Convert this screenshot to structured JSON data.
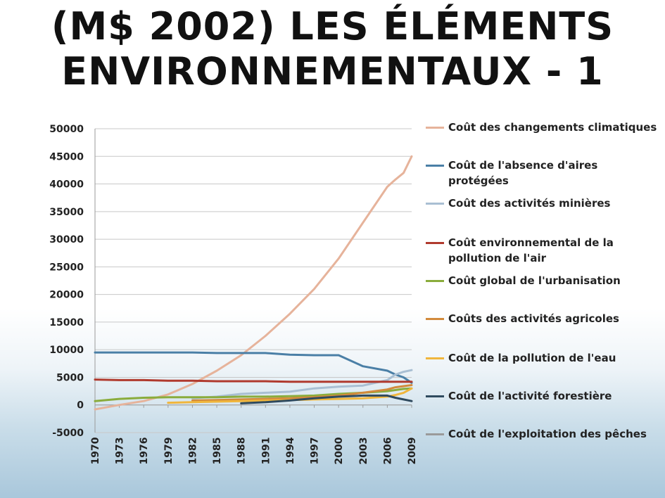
{
  "slide": {
    "title_line1": "(M$ 2002) LES ÉLÉMENTS",
    "title_line2": "ENVIRONNEMENTAUX - 1"
  },
  "chart_data": {
    "type": "line",
    "title": "",
    "xlabel": "",
    "ylabel": "",
    "ylim": [
      -5000,
      50000
    ],
    "yticks": [
      -5000,
      0,
      5000,
      10000,
      15000,
      20000,
      25000,
      30000,
      35000,
      40000,
      45000,
      50000
    ],
    "x": [
      1970,
      1973,
      1976,
      1979,
      1982,
      1985,
      1988,
      1991,
      1994,
      1997,
      2000,
      2003,
      2006,
      2007,
      2008,
      2009
    ],
    "xtick_labels": [
      "1970",
      "1973",
      "1976",
      "1979",
      "1982",
      "1985",
      "1988",
      "1991",
      "1994",
      "1997",
      "2000",
      "2003",
      "2006",
      "2009"
    ],
    "grid": "horizontal",
    "legend_position": "right",
    "series": [
      {
        "name": "Coût des changements climatiques",
        "color": "#e6b39b",
        "values": [
          -800,
          0,
          700,
          1900,
          3800,
          6200,
          9000,
          12500,
          16500,
          21000,
          26500,
          33000,
          39500,
          40800,
          42000,
          45000
        ]
      },
      {
        "name": "Coût de l'absence d'aires protégées",
        "color": "#4a7fa6",
        "values": [
          9500,
          9500,
          9500,
          9500,
          9500,
          9400,
          9400,
          9400,
          9100,
          9000,
          9000,
          7000,
          6200,
          5500,
          5000,
          4000
        ]
      },
      {
        "name": "Coût des activités minières",
        "color": "#a9bfd3",
        "values": [
          null,
          null,
          null,
          null,
          1200,
          1500,
          2000,
          2200,
          2400,
          3000,
          3300,
          3500,
          4500,
          5500,
          6000,
          6300
        ]
      },
      {
        "name": "Coût environnemental de la pollution de l'air",
        "color": "#b03a2e",
        "values": [
          4600,
          4500,
          4500,
          4400,
          4400,
          4300,
          4300,
          4300,
          4200,
          4200,
          4200,
          4200,
          4200,
          4200,
          4200,
          4200
        ]
      },
      {
        "name": "Coût global de l'urbanisation",
        "color": "#8aac3c",
        "values": [
          700,
          1100,
          1300,
          1400,
          1400,
          1400,
          1500,
          1500,
          1600,
          1700,
          2000,
          2200,
          2500,
          2700,
          2900,
          3000
        ]
      },
      {
        "name": "Coûts des activités agricoles",
        "color": "#d28a3c",
        "values": [
          null,
          null,
          null,
          null,
          800,
          900,
          1000,
          1100,
          1200,
          1400,
          1700,
          2200,
          2800,
          3200,
          3400,
          3600
        ]
      },
      {
        "name": "Coût de la pollution de l'eau",
        "color": "#f0b63c",
        "values": [
          null,
          null,
          null,
          400,
          500,
          600,
          700,
          800,
          900,
          1000,
          1100,
          1200,
          1500,
          1800,
          2200,
          3000
        ]
      },
      {
        "name": "Coût de l'activité forestière",
        "color": "#2f4a5e",
        "values": [
          null,
          null,
          null,
          null,
          null,
          null,
          300,
          500,
          800,
          1200,
          1500,
          1700,
          1700,
          1300,
          1000,
          700
        ]
      },
      {
        "name": "Coût de l'exploitation des pêches",
        "color": "#9a9a9a",
        "values": [
          null,
          null,
          null,
          null,
          null,
          null,
          null,
          null,
          null,
          null,
          null,
          null,
          null,
          null,
          null,
          null
        ]
      }
    ]
  }
}
